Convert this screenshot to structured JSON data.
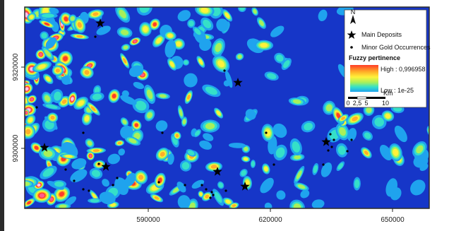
{
  "map": {
    "x_ticks": [
      "590000",
      "620000",
      "650000"
    ],
    "y_ticks": [
      "9320000",
      "9300000"
    ],
    "colors": {
      "background": "#1636c8",
      "ramp": [
        "#1636c8",
        "#1fa3ee",
        "#35e0c8",
        "#a8f05a",
        "#fff23a",
        "#ffae28",
        "#ff3c28",
        "#ff5a8a",
        "#ffc4e6"
      ],
      "frame": "#2b2b2b"
    }
  },
  "legend": {
    "north_label": "N",
    "main_deposits_label": "Main Deposits",
    "minor_occurrences_label": "Minor Gold Occurrences",
    "fuzzy_title": "Fuzzy pertinence",
    "high_label": "High : 0,996958",
    "low_label": "Low : 1e-25",
    "scale_unit": "Km",
    "scale_ticks": [
      "0",
      "2,5",
      "5",
      "10"
    ]
  },
  "icons": {
    "north": "north-arrow-icon",
    "main_deposit": "star-icon",
    "minor_occurrence": "dot-icon"
  }
}
